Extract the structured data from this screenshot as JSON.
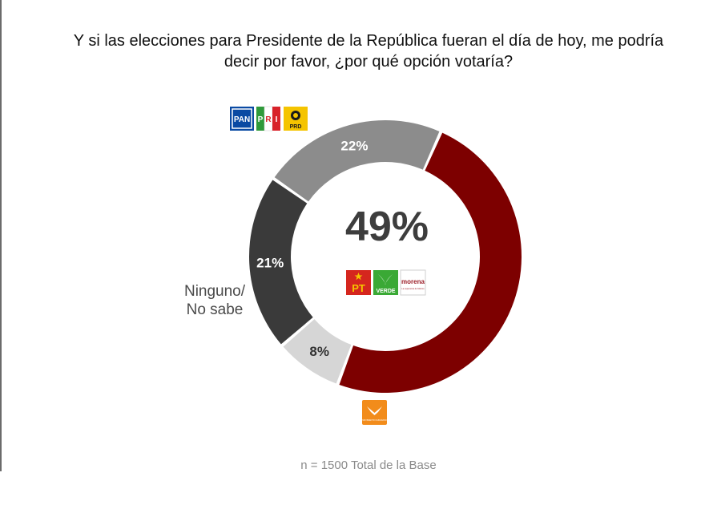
{
  "title": {
    "line1": "Y si las elecciones para Presidente de la República fueran el día de hoy, me podría",
    "line2": "decir por favor, ¿por qué opción votaría?"
  },
  "footer_note": "n = 1500 Total de la Base",
  "chart_data": {
    "type": "pie",
    "donut": true,
    "center_label": "49%",
    "slices": [
      {
        "value": 49,
        "label": "49%",
        "color": "#7d0000",
        "logos": [
          "PT",
          "VERDE",
          "morena"
        ]
      },
      {
        "value": 8,
        "label": "8%",
        "color": "#d6d6d6",
        "logos": [
          "MC"
        ]
      },
      {
        "value": 21,
        "label": "21%",
        "color": "#3a3a3a",
        "category": "Ninguno/ No sabe"
      },
      {
        "value": 22,
        "label": "22%",
        "color": "#8c8c8c",
        "logos": [
          "PAN",
          "PRI",
          "PRD"
        ]
      }
    ]
  },
  "legend_labels": {
    "ninguno_line1": "Ninguno/",
    "ninguno_line2": "No sabe"
  },
  "logos": {
    "pan": "PAN",
    "pri_left": "P",
    "pri_mid": "R",
    "pri_right": "I",
    "prd": "PRD",
    "pt": "PT",
    "verde": "VERDE",
    "morena": "morena",
    "morena_sub": "La esperanza de México",
    "mc": "MOVIMIENTO CIUDADANO"
  }
}
